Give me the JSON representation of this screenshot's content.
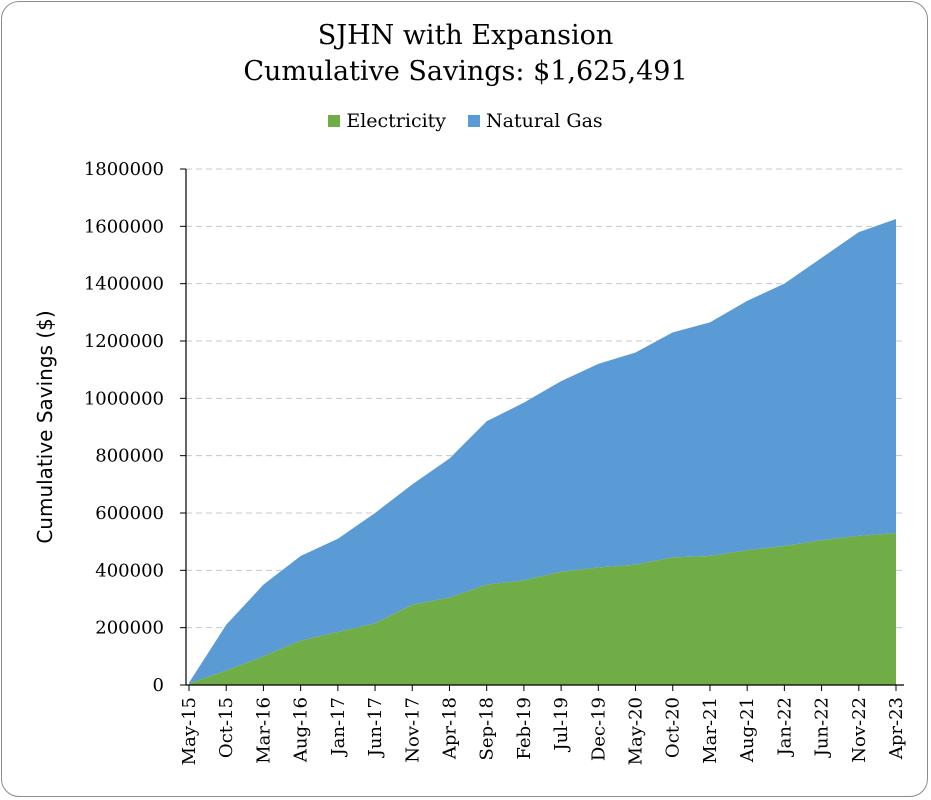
{
  "chart_data": {
    "type": "area",
    "stacked": true,
    "title_line1": "SJHN with Expansion",
    "title_line2": "Cumulative Savings: $1,625,491",
    "xlabel": "",
    "ylabel": "Cumulative Savings ($)",
    "ylim": [
      0,
      1800000
    ],
    "yticks": [
      0,
      200000,
      400000,
      600000,
      800000,
      1000000,
      1200000,
      1400000,
      1600000,
      1800000
    ],
    "xtick_labels": [
      "May-15",
      "Oct-15",
      "Mar-16",
      "Aug-16",
      "Jan-17",
      "Jun-17",
      "Nov-17",
      "Apr-18",
      "Sep-18",
      "Feb-19",
      "Jul-19",
      "Dec-19",
      "May-20",
      "Oct-20",
      "Mar-21",
      "Aug-21",
      "Jan-22",
      "Jun-22",
      "Nov-22",
      "Apr-23"
    ],
    "grid": "horizontal-dashed",
    "legend_position": "top",
    "colors": {
      "electricity": "#70ad47",
      "natural_gas": "#5b9bd5"
    },
    "series": [
      {
        "name": "Electricity",
        "values": [
          5000,
          50000,
          100000,
          155000,
          185000,
          215000,
          280000,
          305000,
          350000,
          365000,
          395000,
          410000,
          420000,
          445000,
          450000,
          470000,
          485000,
          505000,
          520000,
          530000
        ]
      },
      {
        "name": "Natural Gas",
        "values": [
          3000,
          160000,
          250000,
          295000,
          325000,
          385000,
          420000,
          485000,
          570000,
          620000,
          665000,
          710000,
          740000,
          785000,
          815000,
          870000,
          915000,
          985000,
          1060000,
          1095491
        ]
      }
    ],
    "total_final": 1625491
  }
}
